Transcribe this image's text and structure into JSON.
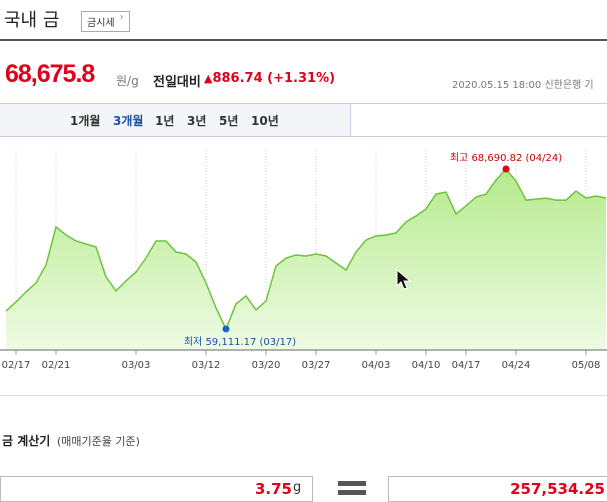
{
  "header": {
    "title": "국내 금",
    "button": "금시세"
  },
  "price": {
    "value": "68,675.8",
    "unit": "원/g",
    "change_label": "전일대비",
    "change": "886.74 (+1.31%)",
    "date": "2020.05.15 18:00",
    "source": "신한은행 기"
  },
  "tabs": {
    "items": [
      "1개월",
      "3개월",
      "1년",
      "3년",
      "5년",
      "10년"
    ],
    "selected": "3개월"
  },
  "chart_data": {
    "type": "line",
    "categories": [
      null,
      "02/17",
      null,
      null,
      null,
      "02/21",
      null,
      null,
      null,
      null,
      null,
      null,
      null,
      "03/03",
      null,
      null,
      null,
      null,
      null,
      null,
      "03/12",
      null,
      null,
      null,
      null,
      null,
      "03/20",
      null,
      null,
      null,
      null,
      "03/27",
      null,
      null,
      null,
      null,
      null,
      "04/03",
      null,
      null,
      null,
      null,
      "04/10",
      null,
      null,
      null,
      "04/17",
      null,
      null,
      null,
      null,
      "04/24",
      null,
      null,
      null,
      null,
      null,
      null,
      "05/08",
      null,
      null
    ],
    "series": [
      {
        "color": "#6cc43c",
        "values": [
          60190,
          60730,
          61330,
          61870,
          62940,
          65220,
          64740,
          64380,
          64200,
          64020,
          62220,
          61390,
          61990,
          62520,
          63360,
          64380,
          64380,
          63720,
          63600,
          63120,
          61870,
          60370,
          59111.17,
          60610,
          61090,
          60250,
          60790,
          62880,
          63360,
          63540,
          63480,
          63600,
          63480,
          63060,
          62640,
          63720,
          64440,
          64680,
          64740,
          64860,
          65520,
          65880,
          66300,
          67190,
          67310,
          66000,
          66480,
          67010,
          67190,
          68030,
          68690.82,
          67970,
          66830,
          66890,
          66950,
          66830,
          66830,
          67370,
          66950,
          67070,
          66950
        ]
      }
    ],
    "ylim": [
      57850,
      69830
    ],
    "annotations": {
      "max": "최고 68,690.82 (04/24)",
      "min": "최저 59,111.17 (03/17)"
    }
  },
  "calculator": {
    "title": "금 계산기",
    "subtitle": "(매매기준율 기준)",
    "input": "3.75",
    "unit": "g",
    "result": "257,534.25"
  }
}
